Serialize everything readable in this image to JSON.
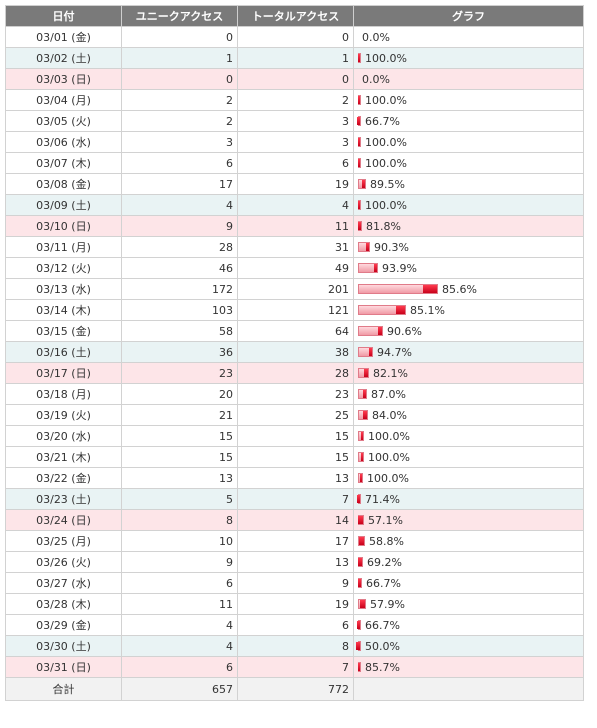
{
  "headers": {
    "date": "日付",
    "unique": "ユニークアクセス",
    "total": "トータルアクセス",
    "graph": "グラフ"
  },
  "chart_data": {
    "type": "bar",
    "title": "",
    "max_total": 201,
    "rows": [
      {
        "date": "03/01 (金)",
        "day": "weekday",
        "unique": 0,
        "total": 0,
        "pct": "0.0%"
      },
      {
        "date": "03/02 (土)",
        "day": "sat",
        "unique": 1,
        "total": 1,
        "pct": "100.0%"
      },
      {
        "date": "03/03 (日)",
        "day": "sun",
        "unique": 0,
        "total": 0,
        "pct": "0.0%"
      },
      {
        "date": "03/04 (月)",
        "day": "weekday",
        "unique": 2,
        "total": 2,
        "pct": "100.0%"
      },
      {
        "date": "03/05 (火)",
        "day": "weekday",
        "unique": 2,
        "total": 3,
        "pct": "66.7%"
      },
      {
        "date": "03/06 (水)",
        "day": "weekday",
        "unique": 3,
        "total": 3,
        "pct": "100.0%"
      },
      {
        "date": "03/07 (木)",
        "day": "weekday",
        "unique": 6,
        "total": 6,
        "pct": "100.0%"
      },
      {
        "date": "03/08 (金)",
        "day": "weekday",
        "unique": 17,
        "total": 19,
        "pct": "89.5%"
      },
      {
        "date": "03/09 (土)",
        "day": "sat",
        "unique": 4,
        "total": 4,
        "pct": "100.0%"
      },
      {
        "date": "03/10 (日)",
        "day": "sun",
        "unique": 9,
        "total": 11,
        "pct": "81.8%"
      },
      {
        "date": "03/11 (月)",
        "day": "weekday",
        "unique": 28,
        "total": 31,
        "pct": "90.3%"
      },
      {
        "date": "03/12 (火)",
        "day": "weekday",
        "unique": 46,
        "total": 49,
        "pct": "93.9%"
      },
      {
        "date": "03/13 (水)",
        "day": "weekday",
        "unique": 172,
        "total": 201,
        "pct": "85.6%"
      },
      {
        "date": "03/14 (木)",
        "day": "weekday",
        "unique": 103,
        "total": 121,
        "pct": "85.1%"
      },
      {
        "date": "03/15 (金)",
        "day": "weekday",
        "unique": 58,
        "total": 64,
        "pct": "90.6%"
      },
      {
        "date": "03/16 (土)",
        "day": "sat",
        "unique": 36,
        "total": 38,
        "pct": "94.7%"
      },
      {
        "date": "03/17 (日)",
        "day": "sun",
        "unique": 23,
        "total": 28,
        "pct": "82.1%"
      },
      {
        "date": "03/18 (月)",
        "day": "weekday",
        "unique": 20,
        "total": 23,
        "pct": "87.0%"
      },
      {
        "date": "03/19 (火)",
        "day": "weekday",
        "unique": 21,
        "total": 25,
        "pct": "84.0%"
      },
      {
        "date": "03/20 (水)",
        "day": "weekday",
        "unique": 15,
        "total": 15,
        "pct": "100.0%"
      },
      {
        "date": "03/21 (木)",
        "day": "weekday",
        "unique": 15,
        "total": 15,
        "pct": "100.0%"
      },
      {
        "date": "03/22 (金)",
        "day": "weekday",
        "unique": 13,
        "total": 13,
        "pct": "100.0%"
      },
      {
        "date": "03/23 (土)",
        "day": "sat",
        "unique": 5,
        "total": 7,
        "pct": "71.4%"
      },
      {
        "date": "03/24 (日)",
        "day": "sun",
        "unique": 8,
        "total": 14,
        "pct": "57.1%"
      },
      {
        "date": "03/25 (月)",
        "day": "weekday",
        "unique": 10,
        "total": 17,
        "pct": "58.8%"
      },
      {
        "date": "03/26 (火)",
        "day": "weekday",
        "unique": 9,
        "total": 13,
        "pct": "69.2%"
      },
      {
        "date": "03/27 (水)",
        "day": "weekday",
        "unique": 6,
        "total": 9,
        "pct": "66.7%"
      },
      {
        "date": "03/28 (木)",
        "day": "weekday",
        "unique": 11,
        "total": 19,
        "pct": "57.9%"
      },
      {
        "date": "03/29 (金)",
        "day": "weekday",
        "unique": 4,
        "total": 6,
        "pct": "66.7%"
      },
      {
        "date": "03/30 (土)",
        "day": "sat",
        "unique": 4,
        "total": 8,
        "pct": "50.0%"
      },
      {
        "date": "03/31 (日)",
        "day": "sun",
        "unique": 6,
        "total": 7,
        "pct": "85.7%"
      }
    ]
  },
  "totals": {
    "label": "合計",
    "unique": "657",
    "total": "772"
  },
  "colors": {
    "header_bg": "#7a7a7a",
    "saturday_bg": "#e9f3f4",
    "sunday_bg": "#fde5e8",
    "bar_light": "#f09aa5",
    "bar_dark": "#c8001a"
  }
}
